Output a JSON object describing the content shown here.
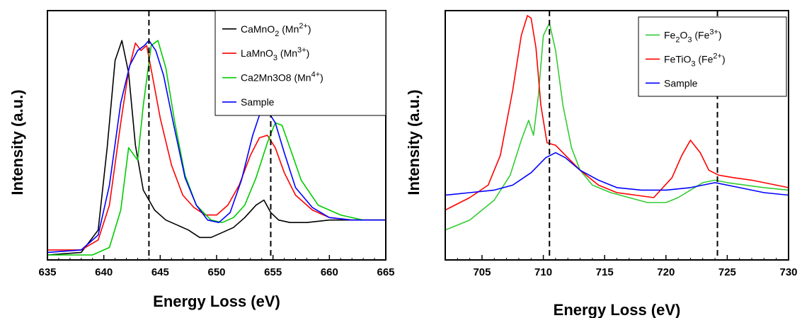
{
  "chart_data": [
    {
      "type": "line",
      "xlabel": "Energy Loss (eV)",
      "ylabel": "Intensity (a.u.)",
      "xlim": [
        635,
        665
      ],
      "xticks": [
        635,
        640,
        645,
        650,
        655,
        660,
        665
      ],
      "ylim": [
        0,
        1
      ],
      "y_tick_labels": false,
      "legend_position": "top-right",
      "reference_lines": [
        644,
        654.8
      ],
      "series": [
        {
          "name": "CaMnO2 (Mn2+)",
          "base": "CaMnO",
          "sub": "2",
          "sup": "2+",
          "prefix": "Mn",
          "color": "#000000",
          "x": [
            635,
            638,
            639.5,
            640.3,
            641.0,
            641.6,
            642.2,
            642.8,
            643.5,
            644.5,
            645.5,
            646.5,
            647.5,
            648.5,
            649.5,
            650.5,
            651.5,
            652.5,
            653.5,
            654.2,
            654.8,
            655.5,
            656.5,
            658,
            660,
            662,
            665
          ],
          "y": [
            0.02,
            0.03,
            0.12,
            0.45,
            0.8,
            0.88,
            0.75,
            0.46,
            0.28,
            0.2,
            0.16,
            0.14,
            0.12,
            0.09,
            0.09,
            0.11,
            0.13,
            0.17,
            0.22,
            0.24,
            0.19,
            0.16,
            0.15,
            0.15,
            0.16,
            0.16,
            0.16
          ]
        },
        {
          "name": "LaMnO3 (Mn3+)",
          "base": "LaMnO",
          "sub": "3",
          "sup": "3+",
          "prefix": "Mn",
          "color": "#ff0000",
          "x": [
            635,
            638,
            639.5,
            640.5,
            641.5,
            642.2,
            642.8,
            643.3,
            643.8,
            644.3,
            645.0,
            646.0,
            647.0,
            648.0,
            649.0,
            650.0,
            651.0,
            652.0,
            653.0,
            653.8,
            654.5,
            655.2,
            656.0,
            657.0,
            658.5,
            660,
            662,
            665
          ],
          "y": [
            0.04,
            0.04,
            0.08,
            0.22,
            0.55,
            0.76,
            0.87,
            0.84,
            0.86,
            0.74,
            0.57,
            0.38,
            0.26,
            0.21,
            0.18,
            0.18,
            0.22,
            0.3,
            0.42,
            0.49,
            0.5,
            0.45,
            0.35,
            0.26,
            0.2,
            0.17,
            0.16,
            0.16
          ]
        },
        {
          "name": "Ca2Mn3O8 (Mn4+)",
          "base": "Ca2Mn3O8",
          "sub": "",
          "sup": "4+",
          "prefix": "Mn",
          "color": "#00cc00",
          "x": [
            635,
            639,
            640.5,
            641.5,
            642.2,
            643.0,
            643.5,
            644.2,
            644.8,
            645.5,
            646.3,
            647.2,
            648.2,
            649.5,
            650.5,
            651.5,
            652.5,
            653.5,
            654.5,
            655.2,
            655.8,
            656.5,
            657.5,
            659,
            661,
            663,
            665
          ],
          "y": [
            0.02,
            0.02,
            0.05,
            0.2,
            0.45,
            0.4,
            0.62,
            0.86,
            0.88,
            0.77,
            0.55,
            0.34,
            0.22,
            0.16,
            0.15,
            0.17,
            0.22,
            0.33,
            0.47,
            0.55,
            0.54,
            0.45,
            0.32,
            0.22,
            0.18,
            0.16,
            0.16
          ]
        },
        {
          "name": "Sample",
          "base": "Sample",
          "sub": "",
          "sup": "",
          "prefix": "",
          "color": "#0000ff",
          "x": [
            635,
            638,
            639.5,
            640.5,
            641.5,
            642.3,
            643.0,
            643.6,
            644.0,
            644.6,
            645.3,
            646.2,
            647.2,
            648.2,
            649.2,
            650.2,
            651.2,
            652.2,
            653.2,
            653.8,
            654.5,
            655.2,
            656.0,
            657.0,
            658.5,
            660,
            662,
            665
          ],
          "y": [
            0.03,
            0.04,
            0.1,
            0.3,
            0.63,
            0.78,
            0.84,
            0.86,
            0.88,
            0.84,
            0.74,
            0.54,
            0.33,
            0.22,
            0.16,
            0.15,
            0.19,
            0.32,
            0.5,
            0.58,
            0.6,
            0.55,
            0.43,
            0.29,
            0.21,
            0.17,
            0.16,
            0.16
          ]
        }
      ]
    },
    {
      "type": "line",
      "xlabel": "Energy Loss (eV)",
      "ylabel": "Intensity (a.u.)",
      "xlim": [
        702,
        730
      ],
      "xticks": [
        705,
        710,
        715,
        720,
        725,
        730
      ],
      "ylim": [
        0,
        1
      ],
      "y_tick_labels": false,
      "legend_position": "top-right",
      "reference_lines": [
        710.5,
        724.2
      ],
      "series": [
        {
          "name": "Fe2O3 (Fe3+)",
          "base": "Fe",
          "sub": "2",
          "tail": "O",
          "tail_sub": "3",
          "sup": "3+",
          "prefix": "Fe",
          "color": "#33cc33",
          "x": [
            702,
            704,
            706,
            707.3,
            708.2,
            708.8,
            709.2,
            709.6,
            710.0,
            710.5,
            711.0,
            711.6,
            712.3,
            713.0,
            714.0,
            715.5,
            717,
            718.5,
            720,
            721,
            722,
            723,
            724,
            725,
            726.5,
            728,
            730
          ],
          "y": [
            0.12,
            0.16,
            0.24,
            0.34,
            0.48,
            0.56,
            0.5,
            0.66,
            0.9,
            0.95,
            0.84,
            0.62,
            0.45,
            0.36,
            0.3,
            0.27,
            0.25,
            0.23,
            0.23,
            0.25,
            0.28,
            0.31,
            0.32,
            0.31,
            0.3,
            0.29,
            0.28
          ]
        },
        {
          "name": "FeTiO3 (Fe2+)",
          "base": "FeTiO",
          "sub": "3",
          "sup": "2+",
          "prefix": "Fe",
          "color": "#ff0000",
          "x": [
            702,
            704,
            705.5,
            706.5,
            707.5,
            708.2,
            708.7,
            709.0,
            709.4,
            709.8,
            710.3,
            711.0,
            711.8,
            713.0,
            714.5,
            716,
            717.5,
            719,
            720.5,
            721.3,
            722,
            722.8,
            723.5,
            724.3,
            725.5,
            727,
            730
          ],
          "y": [
            0.2,
            0.25,
            0.3,
            0.42,
            0.68,
            0.9,
            0.98,
            0.97,
            0.85,
            0.62,
            0.47,
            0.46,
            0.42,
            0.36,
            0.3,
            0.27,
            0.26,
            0.25,
            0.33,
            0.42,
            0.48,
            0.43,
            0.36,
            0.34,
            0.33,
            0.32,
            0.29
          ]
        },
        {
          "name": "Sample",
          "base": "Sample",
          "sub": "",
          "sup": "",
          "prefix": "",
          "color": "#0000ff",
          "x": [
            702,
            704,
            706,
            707.5,
            709,
            710.2,
            711.0,
            711.8,
            713,
            714.5,
            716,
            718,
            720,
            722,
            724,
            726,
            728,
            730
          ],
          "y": [
            0.26,
            0.27,
            0.28,
            0.3,
            0.35,
            0.41,
            0.43,
            0.41,
            0.36,
            0.32,
            0.29,
            0.28,
            0.28,
            0.29,
            0.31,
            0.29,
            0.27,
            0.26
          ]
        }
      ]
    }
  ]
}
